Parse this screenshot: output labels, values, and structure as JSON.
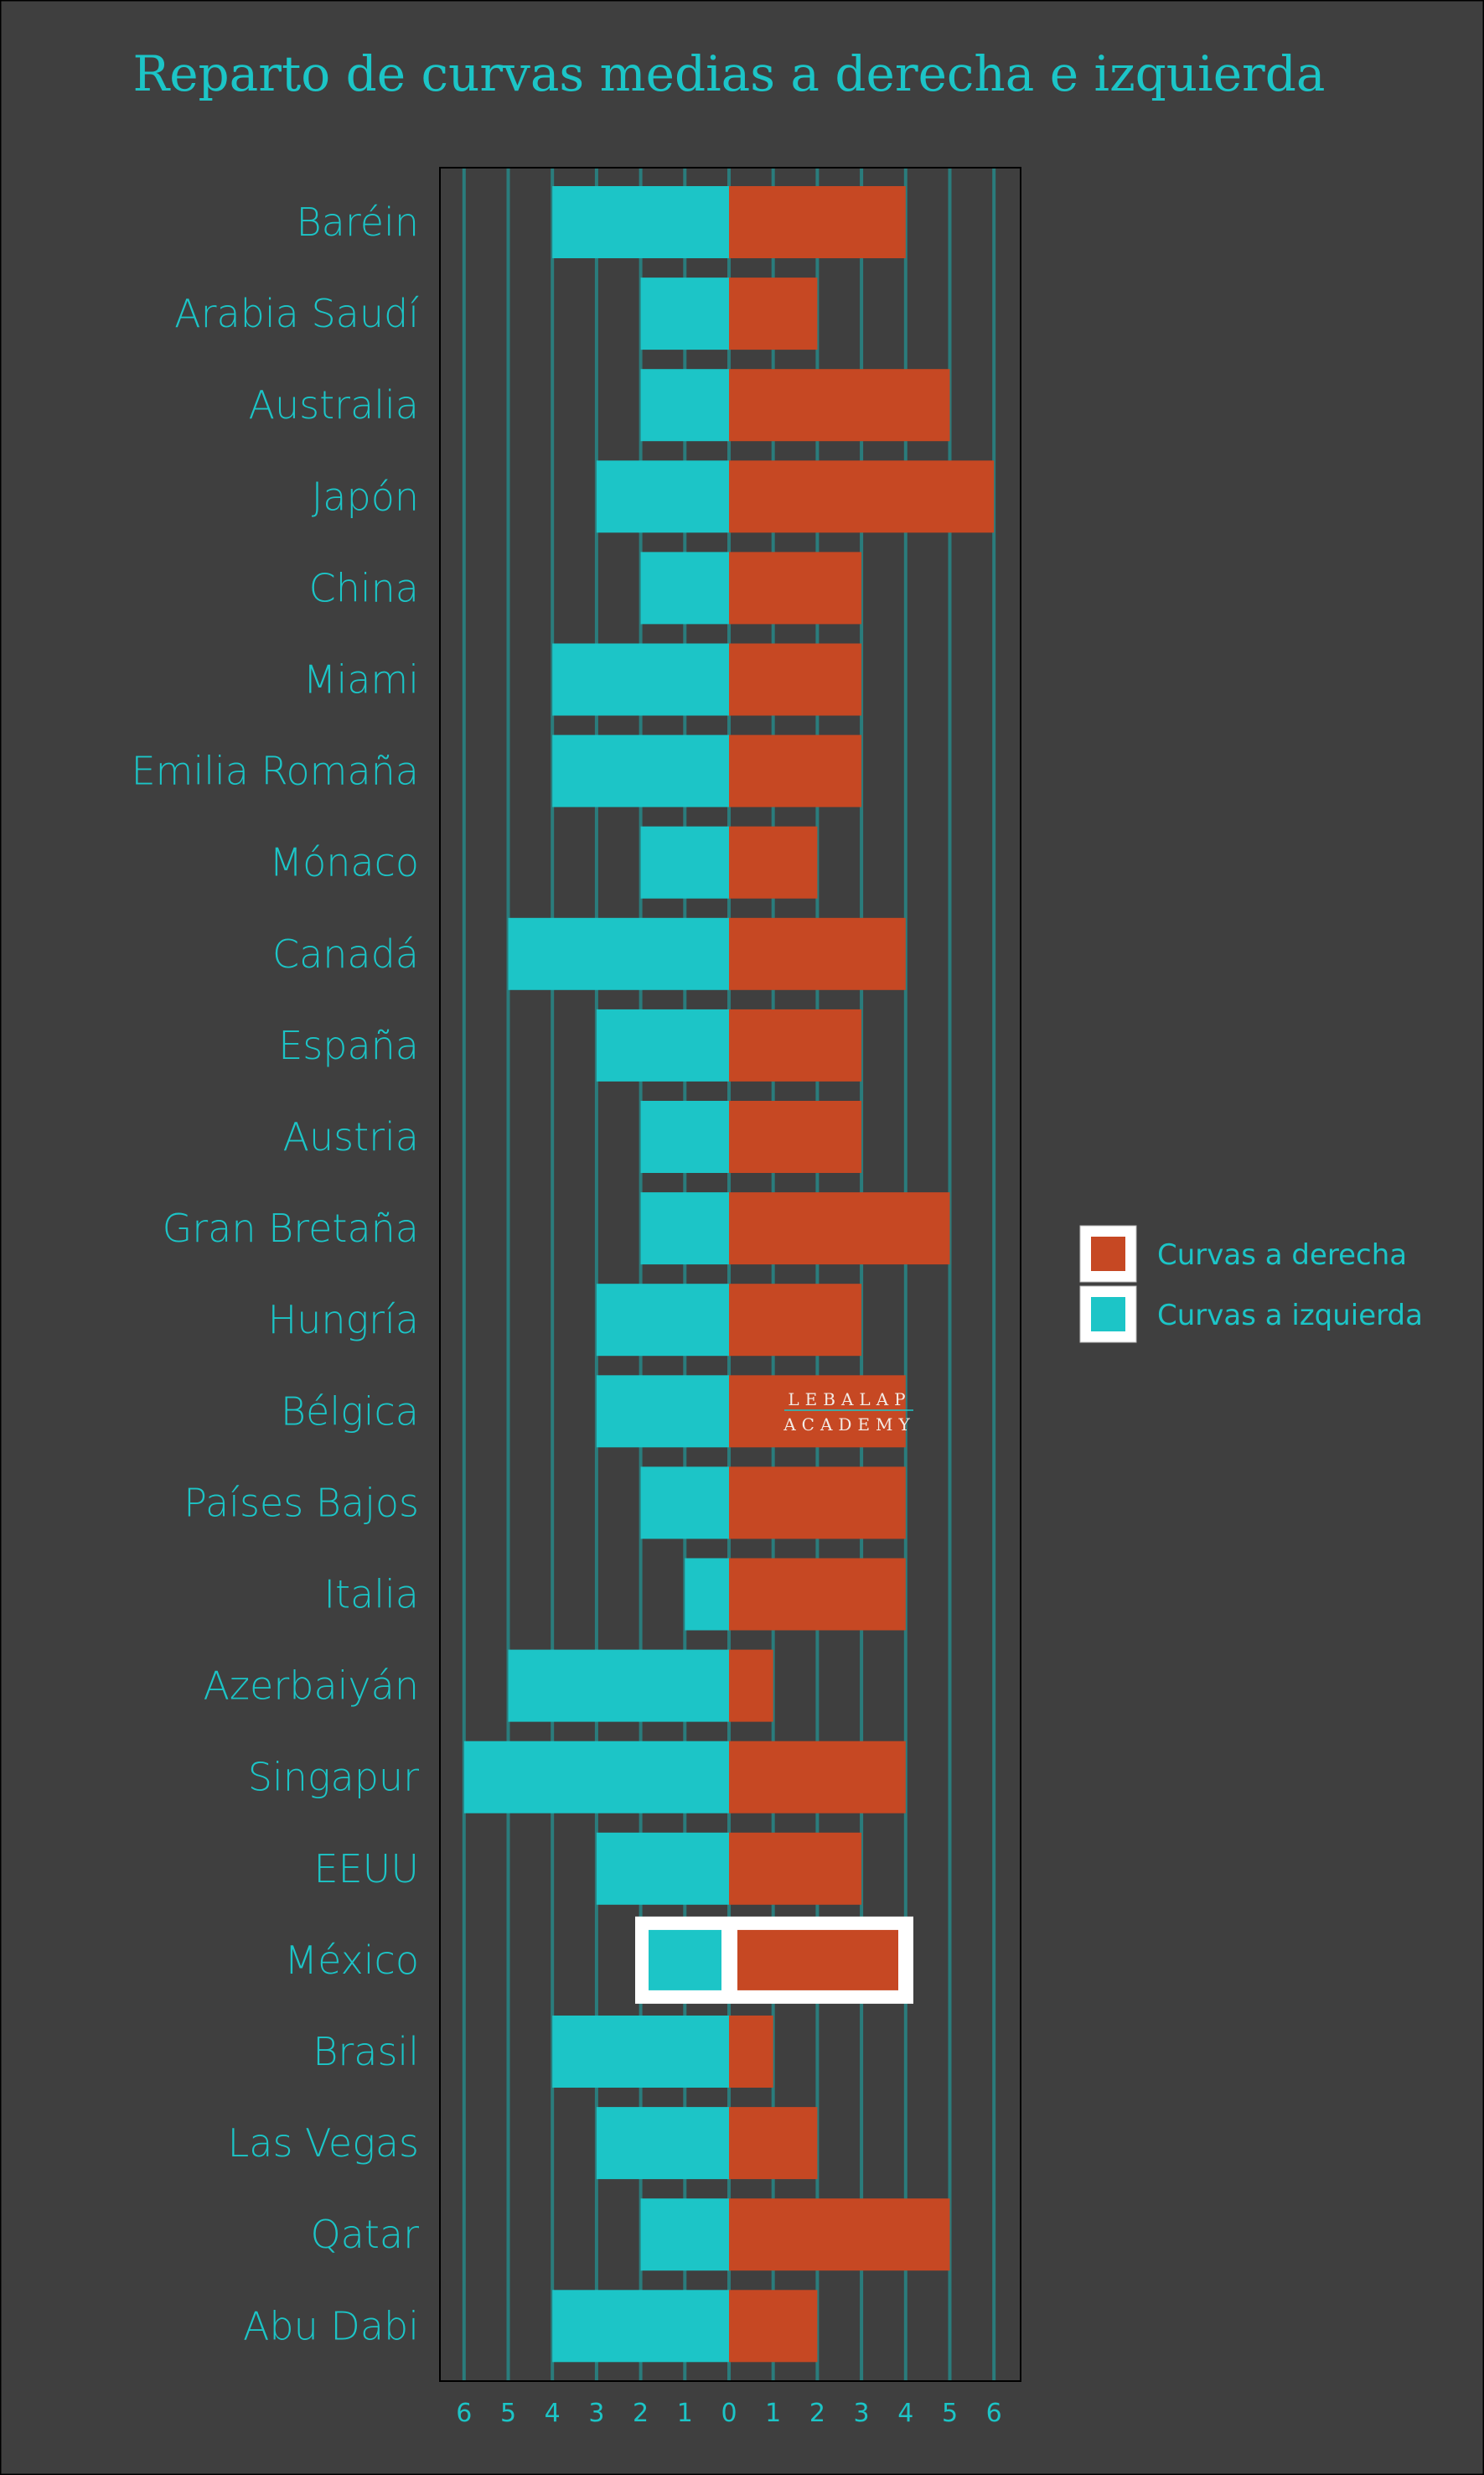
{
  "chart_data": {
    "type": "bar",
    "orientation": "horizontal-diverging",
    "title": "Reparto de curvas medias a derecha e izquierda",
    "categories": [
      "Baréin",
      "Arabia Saudí",
      "Australia",
      "Japón",
      "China",
      "Miami",
      "Emilia Romaña",
      "Mónaco",
      "Canadá",
      "España",
      "Austria",
      "Gran Bretaña",
      "Hungría",
      "Bélgica",
      "Países Bajos",
      "Italia",
      "Azerbaiyán",
      "Singapur",
      "EEUU",
      "México",
      "Brasil",
      "Las Vegas",
      "Qatar",
      "Abu Dabi"
    ],
    "series": [
      {
        "name": "Curvas a derecha",
        "color": "#c64823",
        "values": [
          4,
          2,
          5,
          6,
          3,
          3,
          3,
          2,
          4,
          3,
          3,
          5,
          3,
          4,
          4,
          4,
          1,
          4,
          3,
          4,
          1,
          2,
          5,
          2
        ]
      },
      {
        "name": "Curvas a izquierda",
        "color": "#1cc5c7",
        "values": [
          4,
          2,
          2,
          3,
          2,
          4,
          4,
          2,
          5,
          3,
          2,
          2,
          3,
          3,
          2,
          1,
          5,
          6,
          3,
          2,
          4,
          3,
          2,
          4
        ]
      }
    ],
    "highlighted_category": "México",
    "xlim": [
      -6,
      6
    ],
    "xticks": [
      6,
      5,
      4,
      3,
      2,
      1,
      0,
      1,
      2,
      3,
      4,
      5,
      6
    ],
    "grid": true,
    "legend": {
      "placement": "right",
      "entries": [
        "Curvas a derecha",
        "Curvas a izquierda"
      ]
    },
    "watermark": {
      "line1": "LEBALAP",
      "line2": "ACADEMY"
    }
  },
  "colors": {
    "background": "#3f3f3f",
    "grid": "#2a7c7c",
    "text": "#1cc5c7"
  }
}
